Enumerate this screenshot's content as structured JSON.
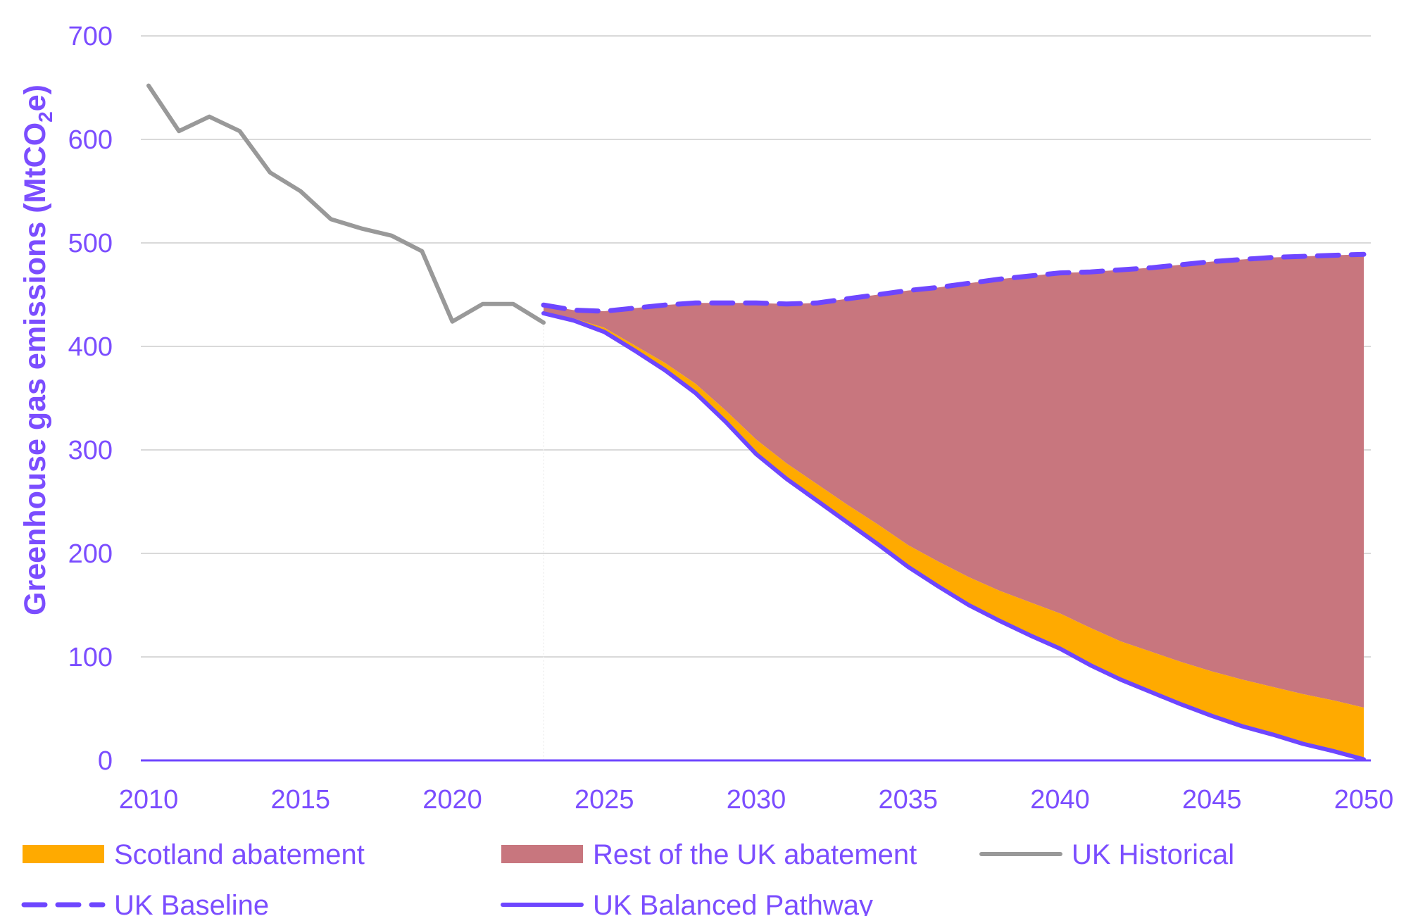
{
  "colors": {
    "text": "#7B4DFF",
    "grid": "#D9D9D9",
    "historical": "#999999",
    "pathway": "#6E46FF",
    "baseline": "#6E46FF",
    "scotland": "#FFAA00",
    "rest_uk": "#C8767E",
    "axis": "#6E46FF"
  },
  "chart_data": {
    "type": "area",
    "ylabel": "Greenhouse gas emissions (MtCO2e)",
    "ylabel_parts": {
      "main": "Greenhouse gas emissions (MtCO",
      "sub": "2",
      "end": "e)"
    },
    "xlim": [
      2010,
      2050
    ],
    "ylim": [
      0,
      700
    ],
    "x_ticks": [
      "2010",
      "2015",
      "2020",
      "2025",
      "2030",
      "2035",
      "2040",
      "2045",
      "2050"
    ],
    "y_ticks": [
      "0",
      "100",
      "200",
      "300",
      "400",
      "500",
      "600",
      "700"
    ],
    "grid": true,
    "legend_position": "bottom",
    "legend": [
      {
        "key": "scotland",
        "label": "Scotland abatement",
        "style": "patch"
      },
      {
        "key": "rest_uk",
        "label": "Rest of the UK abatement",
        "style": "patch"
      },
      {
        "key": "historical",
        "label": "UK Historical",
        "style": "line"
      },
      {
        "key": "baseline",
        "label": "UK Baseline",
        "style": "dashed"
      },
      {
        "key": "pathway",
        "label": "UK Balanced Pathway",
        "style": "line"
      }
    ],
    "series": [
      {
        "name": "UK Historical",
        "x": [
          2010,
          2011,
          2012,
          2013,
          2014,
          2015,
          2016,
          2017,
          2018,
          2019,
          2020,
          2021,
          2022,
          2023
        ],
        "values": [
          652,
          608,
          622,
          608,
          568,
          550,
          523,
          514,
          507,
          492,
          424,
          441,
          441,
          423
        ]
      },
      {
        "name": "UK Baseline",
        "x": [
          2023,
          2024,
          2025,
          2026,
          2027,
          2028,
          2029,
          2030,
          2031,
          2032,
          2033,
          2034,
          2035,
          2036,
          2037,
          2038,
          2039,
          2040,
          2041,
          2042,
          2043,
          2044,
          2045,
          2046,
          2047,
          2048,
          2049,
          2050
        ],
        "values": [
          440,
          435,
          434,
          437,
          440,
          442,
          442,
          442,
          441,
          442,
          446,
          450,
          454,
          457,
          461,
          465,
          468,
          471,
          472,
          474,
          476,
          479,
          482,
          484,
          486,
          487,
          488,
          489
        ]
      },
      {
        "name": "Scotland abatement upper boundary",
        "x": [
          2023,
          2024,
          2025,
          2026,
          2027,
          2028,
          2029,
          2030,
          2031,
          2032,
          2033,
          2034,
          2035,
          2036,
          2037,
          2038,
          2039,
          2040,
          2041,
          2042,
          2043,
          2044,
          2045,
          2046,
          2047,
          2048,
          2049,
          2050
        ],
        "values": [
          433,
          427,
          418,
          401,
          384,
          364,
          338,
          310,
          287,
          267,
          247,
          228,
          208,
          192,
          177,
          164,
          153,
          142,
          128,
          115,
          105,
          95,
          86,
          78,
          71,
          64,
          58,
          51
        ]
      },
      {
        "name": "UK Balanced Pathway",
        "x": [
          2023,
          2024,
          2025,
          2026,
          2027,
          2028,
          2029,
          2030,
          2031,
          2032,
          2033,
          2034,
          2035,
          2036,
          2037,
          2038,
          2039,
          2040,
          2041,
          2042,
          2043,
          2044,
          2045,
          2046,
          2047,
          2048,
          2049,
          2050
        ],
        "values": [
          432,
          425,
          414,
          396,
          377,
          355,
          327,
          296,
          272,
          251,
          230,
          209,
          187,
          168,
          150,
          135,
          121,
          108,
          92,
          78,
          66,
          54,
          43,
          33,
          25,
          16,
          9,
          1
        ]
      }
    ]
  }
}
